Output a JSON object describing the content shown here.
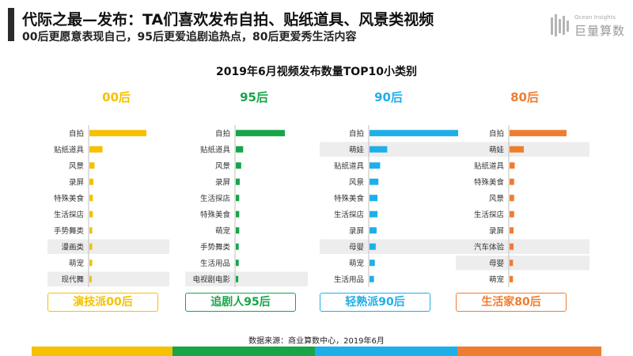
{
  "header": {
    "title": "代际之最—发布：TA们喜欢发布自拍、贴纸道具、风景类视频",
    "subtitle": "00后更愿意表现自己，95后更爱追剧追热点，80后更爱秀生活内容",
    "logo_small": "Ocean Insights",
    "logo_big": "巨量算数"
  },
  "source": "数据来源：商业算数中心，2019年6月",
  "colors": {
    "g00": "#F5C100",
    "g95": "#17A548",
    "g90": "#1FAFE8",
    "g80": "#EE7D31",
    "highlight": "#EDEDED",
    "axis": "#BFBFBF"
  },
  "chart_data": {
    "type": "bar",
    "title": "2019年6月视频发布数量TOP10小类别",
    "groups": [
      {
        "name": "00后",
        "persona": "演技派00后",
        "color": "#F5C100",
        "categories": [
          "自拍",
          "贴纸道具",
          "风景",
          "录屏",
          "特殊美食",
          "生活探店",
          "手势舞类",
          "漫画类",
          "萌宠",
          "现代舞"
        ],
        "values": [
          100,
          23,
          9,
          7,
          6,
          6,
          5,
          5,
          5,
          4
        ],
        "highlighted": [
          "漫画类",
          "现代舞"
        ]
      },
      {
        "name": "95后",
        "persona": "追剧人95后",
        "color": "#17A548",
        "categories": [
          "自拍",
          "贴纸道具",
          "风景",
          "录屏",
          "生活探店",
          "特殊美食",
          "萌宠",
          "手势舞类",
          "生活用品",
          "电视剧电影"
        ],
        "values": [
          100,
          15,
          11,
          8,
          7,
          7,
          7,
          6,
          6,
          5
        ],
        "highlighted": [
          "电视剧电影"
        ]
      },
      {
        "name": "90后",
        "persona": "轻熟派90后",
        "color": "#1FAFE8",
        "categories": [
          "自拍",
          "萌娃",
          "贴纸道具",
          "风景",
          "特殊美食",
          "生活探店",
          "录屏",
          "母婴",
          "萌宠",
          "生活用品"
        ],
        "values": [
          100,
          20,
          12,
          10,
          9,
          9,
          8,
          7,
          6,
          5
        ],
        "highlighted": [
          "萌娃",
          "母婴"
        ]
      },
      {
        "name": "80后",
        "persona": "生活家80后",
        "color": "#EE7D31",
        "categories": [
          "自拍",
          "萌娃",
          "贴纸道具",
          "特殊美食",
          "风景",
          "生活探店",
          "录屏",
          "汽车体验",
          "母婴",
          "萌宠"
        ],
        "values": [
          100,
          25,
          9,
          8,
          8,
          8,
          7,
          7,
          6,
          6
        ],
        "highlighted": [
          "萌娃",
          "汽车体验",
          "母婴"
        ]
      }
    ]
  }
}
